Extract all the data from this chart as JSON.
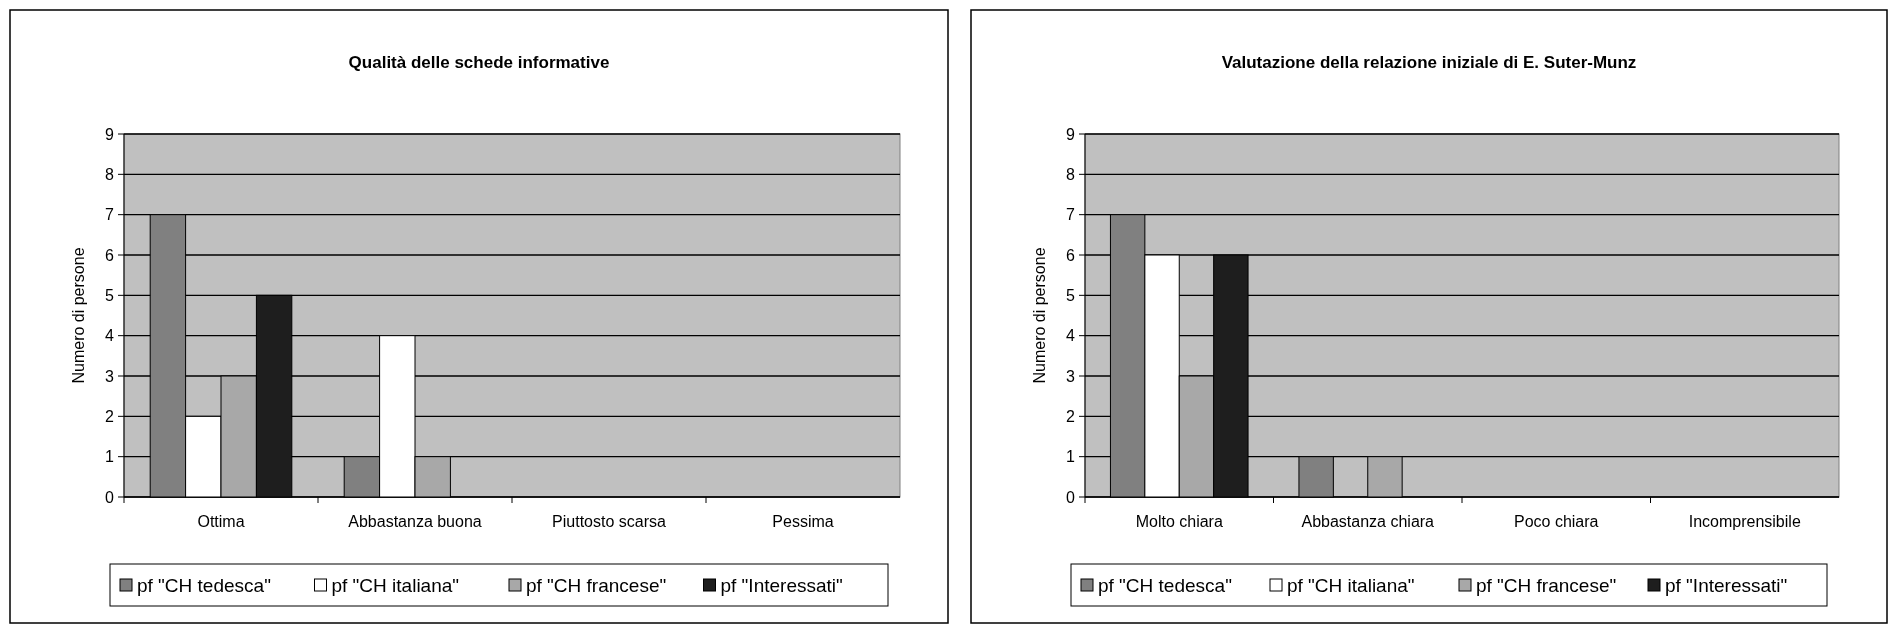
{
  "chart_data": [
    {
      "type": "bar",
      "title": "Qualità delle schede informative",
      "ylabel": "Numero di persone",
      "categories": [
        "Ottima",
        "Abbastanza buona",
        "Piuttosto scarsa",
        "Pessima"
      ],
      "series": [
        {
          "name": "pf \"CH tedesca\"",
          "color": "#808080",
          "values": [
            7,
            1,
            0,
            0
          ]
        },
        {
          "name": "pf \"CH italiana\"",
          "color": "#ffffff",
          "values": [
            2,
            4,
            0,
            0
          ]
        },
        {
          "name": "pf \"CH francese\"",
          "color": "#a8a8a8",
          "values": [
            3,
            1,
            0,
            0
          ]
        },
        {
          "name": "pf \"Interessati\"",
          "color": "#1e1e1e",
          "values": [
            5,
            0,
            0,
            0
          ]
        }
      ],
      "ylim": [
        0,
        9
      ],
      "yticks": [
        0,
        1,
        2,
        3,
        4,
        5,
        6,
        7,
        8,
        9
      ],
      "grid": "y",
      "legend": "bottom"
    },
    {
      "type": "bar",
      "title": "Valutazione della relazione iniziale di E. Suter-Munz",
      "ylabel": "Numero di persone",
      "categories": [
        "Molto chiara",
        "Abbastanza chiara",
        "Poco chiara",
        "Incomprensibile"
      ],
      "series": [
        {
          "name": "pf \"CH tedesca\"",
          "color": "#808080",
          "values": [
            7,
            1,
            0,
            0
          ]
        },
        {
          "name": "pf \"CH italiana\"",
          "color": "#ffffff",
          "values": [
            6,
            0,
            0,
            0
          ]
        },
        {
          "name": "pf \"CH francese\"",
          "color": "#a8a8a8",
          "values": [
            3,
            1,
            0,
            0
          ]
        },
        {
          "name": "pf \"Interessati\"",
          "color": "#1e1e1e",
          "values": [
            6,
            0,
            0,
            0
          ]
        }
      ],
      "ylim": [
        0,
        9
      ],
      "yticks": [
        0,
        1,
        2,
        3,
        4,
        5,
        6,
        7,
        8,
        9
      ],
      "grid": "y",
      "legend": "bottom"
    }
  ]
}
